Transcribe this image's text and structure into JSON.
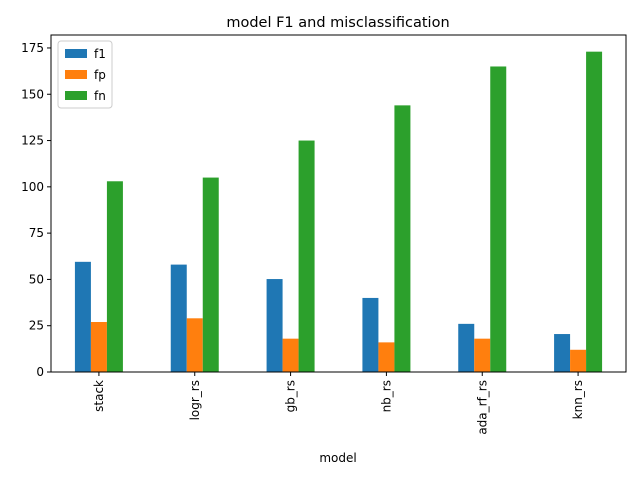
{
  "chart_data": {
    "type": "bar",
    "title": "model F1 and misclassification",
    "xlabel": "model",
    "ylabel": "",
    "categories": [
      "stack",
      "logr_rs",
      "gb_rs",
      "nb_rs",
      "ada_rf_rs",
      "knn_rs"
    ],
    "series": [
      {
        "name": "f1",
        "color": "#1f77b4",
        "values": [
          59.5,
          58,
          50.2,
          40,
          26,
          20.5
        ]
      },
      {
        "name": "fp",
        "color": "#ff7f0e",
        "values": [
          27,
          29,
          18,
          16,
          18,
          12
        ]
      },
      {
        "name": "fn",
        "color": "#2ca02c",
        "values": [
          103,
          105,
          125,
          144,
          165,
          173
        ]
      }
    ],
    "ylim": [
      0,
      182
    ],
    "yticks": [
      0,
      25,
      50,
      75,
      100,
      125,
      150,
      175
    ],
    "grid": false,
    "legend": "upper-left"
  }
}
